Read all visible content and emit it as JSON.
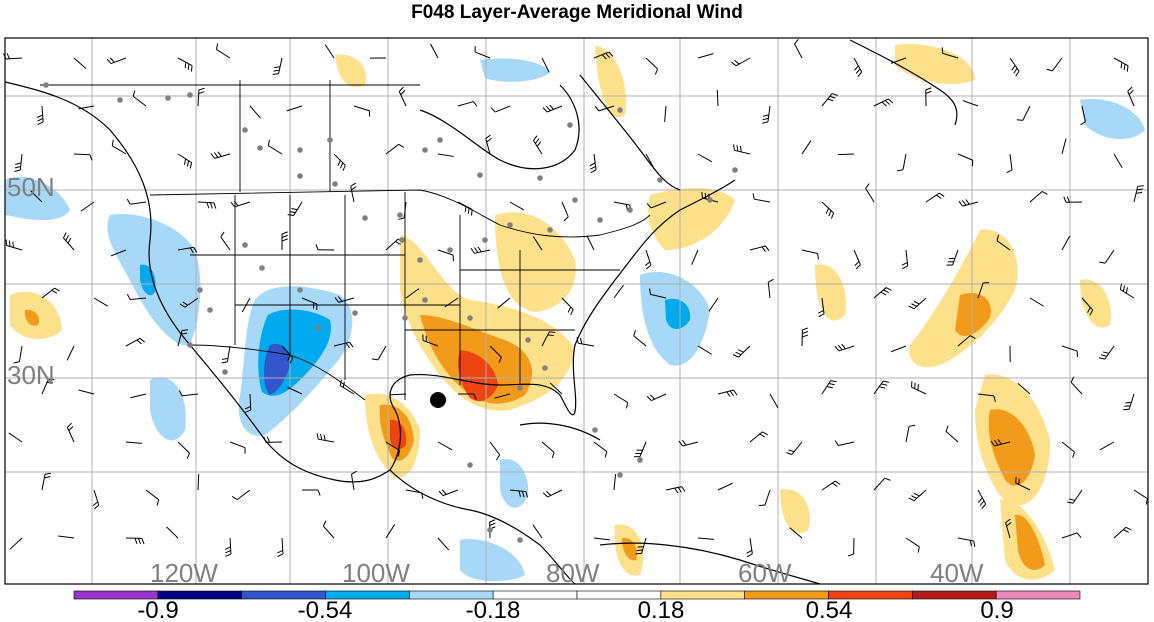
{
  "title": "F048 Layer-Average Meridional Wind",
  "map": {
    "projection": "lat-lon",
    "lat_labels": [
      "50N",
      "30N"
    ],
    "lon_labels": [
      "120W",
      "100W",
      "80W",
      "60W",
      "40W"
    ],
    "gridlines": true
  },
  "colorbar": {
    "tick_labels": [
      "-0.9",
      "-0.54",
      "-0.18",
      "0.18",
      "0.54",
      "0.9"
    ],
    "colors": [
      "#9933cc",
      "#000080",
      "#3355cc",
      "#00aaee",
      "#a8d8f8",
      "#ffffff",
      "#ffffff",
      "#fce08a",
      "#f29b1b",
      "#ee4411",
      "#b31a1a",
      "#ee88bb"
    ]
  },
  "features": {
    "marker": "storm-center-dot",
    "positive_color": "#f29b1b",
    "negative_color": "#a8d8f8"
  }
}
